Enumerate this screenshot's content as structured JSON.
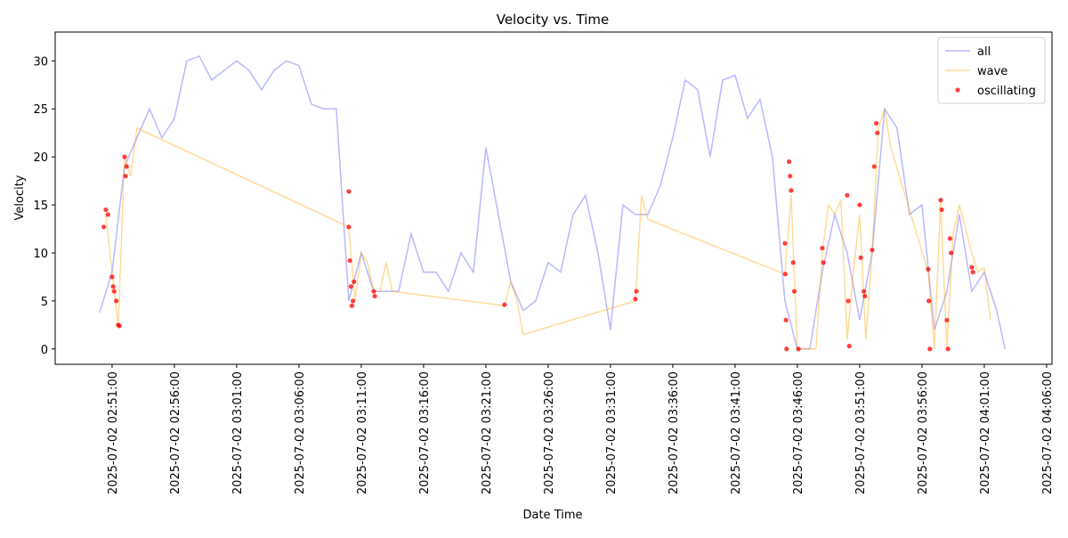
{
  "chart_data": {
    "type": "line",
    "title": "Velocity vs. Time",
    "x_label": "Date Time",
    "y_label": "Velocity",
    "xlim": [
      "2025-07-02 02:46:26",
      "2025-07-02 04:06:26"
    ],
    "xticks": [
      "2025-07-02 02:51:00",
      "2025-07-02 02:56:00",
      "2025-07-02 03:01:00",
      "2025-07-02 03:06:00",
      "2025-07-02 03:11:00",
      "2025-07-02 03:16:00",
      "2025-07-02 03:21:00",
      "2025-07-02 03:26:00",
      "2025-07-02 03:31:00",
      "2025-07-02 03:36:00",
      "2025-07-02 03:41:00",
      "2025-07-02 03:46:00",
      "2025-07-02 03:51:00",
      "2025-07-02 03:56:00",
      "2025-07-02 04:01:00",
      "2025-07-02 04:06:00"
    ],
    "ylim": [
      -1.6,
      33
    ],
    "yticks": [
      0,
      5,
      10,
      15,
      20,
      25,
      30
    ],
    "legend": "upper right",
    "series": [
      {
        "name": "all",
        "type": "line",
        "color": "#0000ff",
        "x": [
          "2025-07-02 02:50:00",
          "2025-07-02 02:51:00",
          "2025-07-02 02:52:00",
          "2025-07-02 02:53:00",
          "2025-07-02 02:54:00",
          "2025-07-02 02:55:00",
          "2025-07-02 02:56:00",
          "2025-07-02 02:57:00",
          "2025-07-02 02:58:00",
          "2025-07-02 02:59:00",
          "2025-07-02 03:00:00",
          "2025-07-02 03:01:00",
          "2025-07-02 03:02:00",
          "2025-07-02 03:03:00",
          "2025-07-02 03:04:00",
          "2025-07-02 03:05:00",
          "2025-07-02 03:06:00",
          "2025-07-02 03:07:00",
          "2025-07-02 03:08:00",
          "2025-07-02 03:09:00",
          "2025-07-02 03:10:00",
          "2025-07-02 03:11:00",
          "2025-07-02 03:12:00",
          "2025-07-02 03:13:00",
          "2025-07-02 03:14:00",
          "2025-07-02 03:15:00",
          "2025-07-02 03:16:00",
          "2025-07-02 03:17:00",
          "2025-07-02 03:18:00",
          "2025-07-02 03:19:00",
          "2025-07-02 03:20:00",
          "2025-07-02 03:21:00",
          "2025-07-02 03:22:00",
          "2025-07-02 03:23:00",
          "2025-07-02 03:24:00",
          "2025-07-02 03:25:00",
          "2025-07-02 03:26:00",
          "2025-07-02 03:27:00",
          "2025-07-02 03:28:00",
          "2025-07-02 03:29:00",
          "2025-07-02 03:30:00",
          "2025-07-02 03:31:00",
          "2025-07-02 03:32:00",
          "2025-07-02 03:33:00",
          "2025-07-02 03:34:00",
          "2025-07-02 03:35:00",
          "2025-07-02 03:36:00",
          "2025-07-02 03:37:00",
          "2025-07-02 03:38:00",
          "2025-07-02 03:39:00",
          "2025-07-02 03:40:00",
          "2025-07-02 03:41:00",
          "2025-07-02 03:42:00",
          "2025-07-02 03:43:00",
          "2025-07-02 03:44:00",
          "2025-07-02 03:45:00",
          "2025-07-02 03:46:00",
          "2025-07-02 03:47:00",
          "2025-07-02 03:48:00",
          "2025-07-02 03:49:00",
          "2025-07-02 03:50:00",
          "2025-07-02 03:51:00",
          "2025-07-02 03:52:00",
          "2025-07-02 03:53:00",
          "2025-07-02 03:54:00",
          "2025-07-02 03:55:00",
          "2025-07-02 03:56:00",
          "2025-07-02 03:57:00",
          "2025-07-02 03:58:00",
          "2025-07-02 03:59:00",
          "2025-07-02 04:00:00",
          "2025-07-02 04:01:00",
          "2025-07-02 04:02:00",
          "2025-07-02 04:02:40"
        ],
        "values": [
          3.8,
          8,
          19,
          22,
          25,
          22,
          24,
          30,
          30.5,
          28,
          29,
          30,
          29,
          27,
          29,
          30,
          29.5,
          25.5,
          25,
          25,
          5,
          10,
          6,
          6,
          6,
          12,
          8,
          8,
          6,
          10,
          8,
          21,
          14,
          7,
          4,
          5,
          9,
          8,
          14,
          16,
          10,
          2,
          15,
          14,
          14,
          17,
          22,
          28,
          27,
          20,
          28,
          28.5,
          24,
          26,
          20,
          5,
          0,
          0,
          8,
          14,
          10,
          3,
          10,
          25,
          23,
          14,
          15,
          2,
          6,
          14,
          6,
          8,
          4,
          0
        ]
      },
      {
        "name": "wave",
        "type": "line",
        "color": "#ffa500",
        "x": [
          "2025-07-02 02:50:30",
          "2025-07-02 02:51:00",
          "2025-07-02 02:51:30",
          "2025-07-02 02:52:00",
          "2025-07-02 02:52:30",
          "2025-07-02 02:53:00",
          "2025-07-02 03:10:00",
          "2025-07-02 03:10:30",
          "2025-07-02 03:11:00",
          "2025-07-02 03:11:30",
          "2025-07-02 03:12:00",
          "2025-07-02 03:12:30",
          "2025-07-02 03:13:00",
          "2025-07-02 03:13:30",
          "2025-07-02 03:22:30",
          "2025-07-02 03:23:00",
          "2025-07-02 03:23:30",
          "2025-07-02 03:24:00",
          "2025-07-02 03:33:00",
          "2025-07-02 03:33:30",
          "2025-07-02 03:34:00",
          "2025-07-02 03:45:00",
          "2025-07-02 03:45:30",
          "2025-07-02 03:46:00",
          "2025-07-02 03:47:00",
          "2025-07-02 03:47:30",
          "2025-07-02 03:48:00",
          "2025-07-02 03:48:30",
          "2025-07-02 03:49:00",
          "2025-07-02 03:49:30",
          "2025-07-02 03:50:00",
          "2025-07-02 03:50:30",
          "2025-07-02 03:51:00",
          "2025-07-02 03:51:30",
          "2025-07-02 03:52:00",
          "2025-07-02 03:52:30",
          "2025-07-02 03:53:00",
          "2025-07-02 03:53:30",
          "2025-07-02 03:56:30",
          "2025-07-02 03:57:00",
          "2025-07-02 03:57:30",
          "2025-07-02 03:58:00",
          "2025-07-02 03:58:30",
          "2025-07-02 03:59:00",
          "2025-07-02 04:00:00",
          "2025-07-02 04:00:30",
          "2025-07-02 04:01:00",
          "2025-07-02 04:01:30"
        ],
        "values": [
          14,
          8,
          2.5,
          20,
          18,
          23,
          12.7,
          5,
          10,
          9,
          6,
          6,
          9,
          6,
          4.5,
          7,
          5,
          1.5,
          5,
          16,
          13.5,
          7.8,
          16,
          0,
          0,
          0,
          10,
          15,
          14,
          15.5,
          1,
          8,
          14,
          1,
          10,
          23,
          25,
          21,
          8,
          0,
          15.5,
          0,
          12,
          15,
          10,
          8,
          8.5,
          3
        ]
      },
      {
        "name": "oscillating",
        "type": "scatter",
        "color": "#ff0000",
        "x": [
          "2025-07-02 02:50:20",
          "2025-07-02 02:50:30",
          "2025-07-02 02:50:40",
          "2025-07-02 02:51:00",
          "2025-07-02 02:51:05",
          "2025-07-02 02:51:10",
          "2025-07-02 02:51:20",
          "2025-07-02 02:51:30",
          "2025-07-02 02:51:35",
          "2025-07-02 02:52:00",
          "2025-07-02 02:52:05",
          "2025-07-02 02:52:10",
          "2025-07-02 03:10:00",
          "2025-07-02 03:10:00",
          "2025-07-02 03:10:05",
          "2025-07-02 03:10:10",
          "2025-07-02 03:10:15",
          "2025-07-02 03:10:20",
          "2025-07-02 03:10:25",
          "2025-07-02 03:12:00",
          "2025-07-02 03:12:05",
          "2025-07-02 03:22:30",
          "2025-07-02 03:33:00",
          "2025-07-02 03:33:05",
          "2025-07-02 03:45:00",
          "2025-07-02 03:45:02",
          "2025-07-02 03:45:05",
          "2025-07-02 03:45:08",
          "2025-07-02 03:45:20",
          "2025-07-02 03:45:25",
          "2025-07-02 03:45:30",
          "2025-07-02 03:45:40",
          "2025-07-02 03:45:45",
          "2025-07-02 03:46:05",
          "2025-07-02 03:48:00",
          "2025-07-02 03:48:05",
          "2025-07-02 03:50:00",
          "2025-07-02 03:50:05",
          "2025-07-02 03:50:10",
          "2025-07-02 03:51:00",
          "2025-07-02 03:51:05",
          "2025-07-02 03:51:20",
          "2025-07-02 03:51:25",
          "2025-07-02 03:52:00",
          "2025-07-02 03:52:10",
          "2025-07-02 03:52:20",
          "2025-07-02 03:52:25",
          "2025-07-02 03:56:30",
          "2025-07-02 03:56:33",
          "2025-07-02 03:56:38",
          "2025-07-02 03:57:30",
          "2025-07-02 03:57:35",
          "2025-07-02 03:58:00",
          "2025-07-02 03:58:05",
          "2025-07-02 03:58:15",
          "2025-07-02 03:58:20",
          "2025-07-02 04:00:00",
          "2025-07-02 04:00:05"
        ],
        "values": [
          12.7,
          14.5,
          14,
          7.5,
          6.5,
          6,
          5,
          2.5,
          2.4,
          20,
          18,
          19,
          16.4,
          12.7,
          9.2,
          6.5,
          4.5,
          5,
          7,
          6,
          5.5,
          4.6,
          5.2,
          6,
          11,
          7.8,
          3,
          0,
          19.5,
          18,
          16.5,
          9,
          6,
          0,
          10.5,
          9,
          16,
          5,
          0.3,
          15,
          9.5,
          6,
          5.5,
          10.3,
          19,
          23.5,
          22.5,
          8.3,
          5,
          0,
          15.5,
          14.5,
          3,
          0,
          11.5,
          10,
          8.5,
          8
        ]
      }
    ]
  }
}
